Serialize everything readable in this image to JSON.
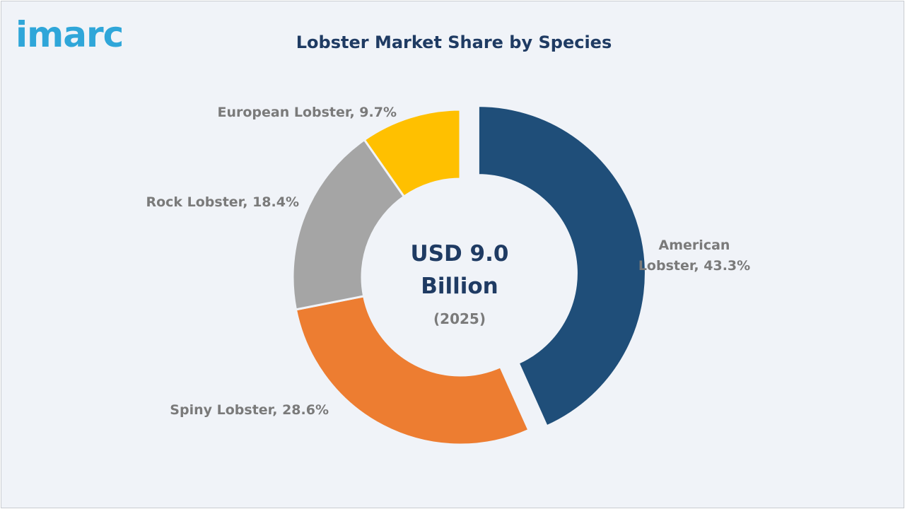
{
  "brand": {
    "logo_text": "imarc",
    "logo_color": "#2fa6d9"
  },
  "colors": {
    "frame_bg": "#f0f3f8",
    "title": "#1f3b63",
    "label": "#7a7a7a",
    "center_value": "#1f3b63",
    "center_year": "#7a7a7a"
  },
  "chart_data": {
    "type": "pie",
    "style": "donut",
    "title": "Lobster Market Share by Species",
    "unit": "%",
    "center_text": {
      "value_lines": [
        "USD 9.0",
        "Billion"
      ],
      "year": "(2025)"
    },
    "legend": "none",
    "slices": [
      {
        "name": "American Lobster",
        "value": 43.3,
        "label_lines": [
          "American",
          "Lobster, 43.3%"
        ],
        "color": "#1f4e79",
        "exploded": true
      },
      {
        "name": "Spiny Lobster",
        "value": 28.6,
        "label_lines": [
          "Spiny Lobster, 28.6%"
        ],
        "color": "#ed7d31",
        "exploded": false
      },
      {
        "name": "Rock Lobster",
        "value": 18.4,
        "label_lines": [
          "Rock Lobster, 18.4%"
        ],
        "color": "#a5a5a5",
        "exploded": false
      },
      {
        "name": "European Lobster",
        "value": 9.7,
        "label_lines": [
          "European Lobster, 9.7%"
        ],
        "color": "#ffc000",
        "exploded": false
      }
    ]
  }
}
